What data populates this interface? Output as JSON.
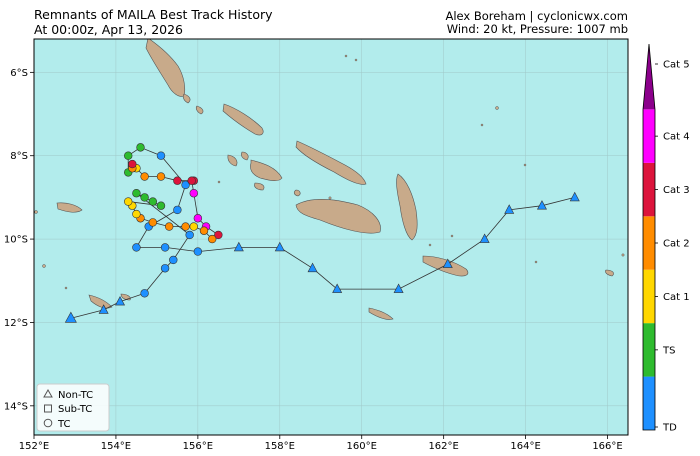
{
  "header": {
    "title_line1": "Remnants of MAILA Best Track History",
    "title_line2": "At 00:00z, Apr 13, 2026",
    "credit": "Alex Boreham | cyclonicwx.com",
    "conditions": "Wind: 20 kt, Pressure: 1007 mb"
  },
  "map": {
    "lon_range": [
      152,
      166.5
    ],
    "lat_range": [
      -14.7,
      -5.2
    ],
    "ocean_color": "#b2ecec",
    "land_color": "#c8aa8a",
    "lon_ticks": [
      "152°E",
      "154°E",
      "156°E",
      "158°E",
      "160°E",
      "162°E",
      "164°E",
      "166°E"
    ],
    "lat_ticks": [
      "6°S",
      "8°S",
      "10°S",
      "12°S",
      "14°S"
    ]
  },
  "colorbar": {
    "labels": [
      "TD",
      "TS",
      "Cat 1",
      "Cat 2",
      "Cat 3",
      "Cat 4",
      "Cat 5"
    ],
    "colors": [
      "#1e90ff",
      "#2ebb2e",
      "#ffd700",
      "#ff8c00",
      "#dc143c",
      "#ff00ff",
      "#8b008b"
    ]
  },
  "legend": {
    "items": [
      {
        "label": "Non-TC",
        "shape": "triangle"
      },
      {
        "label": "Sub-TC",
        "shape": "square"
      },
      {
        "label": "TC",
        "shape": "circle"
      }
    ]
  },
  "track": [
    {
      "lon": 165.2,
      "lat": -9.0,
      "type": "nontc",
      "cat": "TD"
    },
    {
      "lon": 164.4,
      "lat": -9.2,
      "type": "nontc",
      "cat": "TD"
    },
    {
      "lon": 163.6,
      "lat": -9.3,
      "type": "nontc",
      "cat": "TD"
    },
    {
      "lon": 163.0,
      "lat": -10.0,
      "type": "nontc",
      "cat": "TD"
    },
    {
      "lon": 162.1,
      "lat": -10.6,
      "type": "nontc",
      "cat": "TD"
    },
    {
      "lon": 160.9,
      "lat": -11.2,
      "type": "nontc",
      "cat": "TD"
    },
    {
      "lon": 159.4,
      "lat": -11.2,
      "type": "nontc",
      "cat": "TD"
    },
    {
      "lon": 158.8,
      "lat": -10.7,
      "type": "nontc",
      "cat": "TD"
    },
    {
      "lon": 158.0,
      "lat": -10.2,
      "type": "nontc",
      "cat": "TD"
    },
    {
      "lon": 157.0,
      "lat": -10.2,
      "type": "nontc",
      "cat": "TD"
    },
    {
      "lon": 156.0,
      "lat": -10.3,
      "type": "tc",
      "cat": "TD"
    },
    {
      "lon": 155.2,
      "lat": -10.2,
      "type": "tc",
      "cat": "TD"
    },
    {
      "lon": 154.5,
      "lat": -10.2,
      "type": "tc",
      "cat": "TD"
    },
    {
      "lon": 154.8,
      "lat": -9.7,
      "type": "tc",
      "cat": "TD"
    },
    {
      "lon": 155.5,
      "lat": -9.3,
      "type": "tc",
      "cat": "TD"
    },
    {
      "lon": 155.7,
      "lat": -8.7,
      "type": "tc",
      "cat": "TD"
    },
    {
      "lon": 155.1,
      "lat": -8.0,
      "type": "tc",
      "cat": "TD"
    },
    {
      "lon": 154.6,
      "lat": -7.8,
      "type": "tc",
      "cat": "TS"
    },
    {
      "lon": 154.3,
      "lat": -8.0,
      "type": "tc",
      "cat": "TS"
    },
    {
      "lon": 154.3,
      "lat": -8.4,
      "type": "tc",
      "cat": "TS"
    },
    {
      "lon": 154.5,
      "lat": -8.3,
      "type": "tc",
      "cat": "Cat 1"
    },
    {
      "lon": 154.4,
      "lat": -8.3,
      "type": "tc",
      "cat": "Cat 2"
    },
    {
      "lon": 154.4,
      "lat": -8.2,
      "type": "tc",
      "cat": "Cat 3"
    },
    {
      "lon": 154.7,
      "lat": -8.5,
      "type": "tc",
      "cat": "Cat 2"
    },
    {
      "lon": 155.1,
      "lat": -8.5,
      "type": "tc",
      "cat": "Cat 2"
    },
    {
      "lon": 155.5,
      "lat": -8.6,
      "type": "tc",
      "cat": "Cat 3"
    },
    {
      "lon": 155.9,
      "lat": -8.6,
      "type": "tc",
      "cat": "Cat 3"
    },
    {
      "lon": 155.85,
      "lat": -8.6,
      "type": "tc",
      "cat": "Cat 3"
    },
    {
      "lon": 155.9,
      "lat": -8.9,
      "type": "tc",
      "cat": "Cat 4"
    },
    {
      "lon": 156.0,
      "lat": -9.5,
      "type": "tc",
      "cat": "Cat 4"
    },
    {
      "lon": 156.2,
      "lat": -9.7,
      "type": "tc",
      "cat": "Cat 4"
    },
    {
      "lon": 156.5,
      "lat": -9.9,
      "type": "tc",
      "cat": "Cat 3"
    },
    {
      "lon": 156.35,
      "lat": -10.0,
      "type": "tc",
      "cat": "Cat 2"
    },
    {
      "lon": 156.15,
      "lat": -9.8,
      "type": "tc",
      "cat": "Cat 2"
    },
    {
      "lon": 155.9,
      "lat": -9.7,
      "type": "tc",
      "cat": "Cat 1"
    },
    {
      "lon": 155.7,
      "lat": -9.7,
      "type": "tc",
      "cat": "Cat 2"
    },
    {
      "lon": 155.3,
      "lat": -9.7,
      "type": "tc",
      "cat": "Cat 2"
    },
    {
      "lon": 154.9,
      "lat": -9.6,
      "type": "tc",
      "cat": "Cat 2"
    },
    {
      "lon": 154.6,
      "lat": -9.5,
      "type": "tc",
      "cat": "Cat 2"
    },
    {
      "lon": 154.5,
      "lat": -9.4,
      "type": "tc",
      "cat": "Cat 1"
    },
    {
      "lon": 154.4,
      "lat": -9.2,
      "type": "tc",
      "cat": "Cat 1"
    },
    {
      "lon": 154.3,
      "lat": -9.1,
      "type": "tc",
      "cat": "Cat 1"
    },
    {
      "lon": 155.1,
      "lat": -9.2,
      "type": "tc",
      "cat": "TS"
    },
    {
      "lon": 154.9,
      "lat": -9.1,
      "type": "tc",
      "cat": "TS"
    },
    {
      "lon": 154.7,
      "lat": -9.0,
      "type": "tc",
      "cat": "TS"
    },
    {
      "lon": 154.5,
      "lat": -8.9,
      "type": "tc",
      "cat": "TS"
    },
    {
      "lon": 155.8,
      "lat": -9.9,
      "type": "tc",
      "cat": "TD"
    },
    {
      "lon": 155.4,
      "lat": -10.5,
      "type": "tc",
      "cat": "TD"
    },
    {
      "lon": 155.2,
      "lat": -10.7,
      "type": "tc",
      "cat": "TD"
    },
    {
      "lon": 154.7,
      "lat": -11.3,
      "type": "tc",
      "cat": "TD"
    },
    {
      "lon": 154.1,
      "lat": -11.5,
      "type": "nontc",
      "cat": "TD"
    },
    {
      "lon": 153.7,
      "lat": -11.7,
      "type": "nontc",
      "cat": "TD"
    },
    {
      "lon": 152.9,
      "lat": -11.9,
      "type": "nontc",
      "cat": "TD"
    }
  ]
}
